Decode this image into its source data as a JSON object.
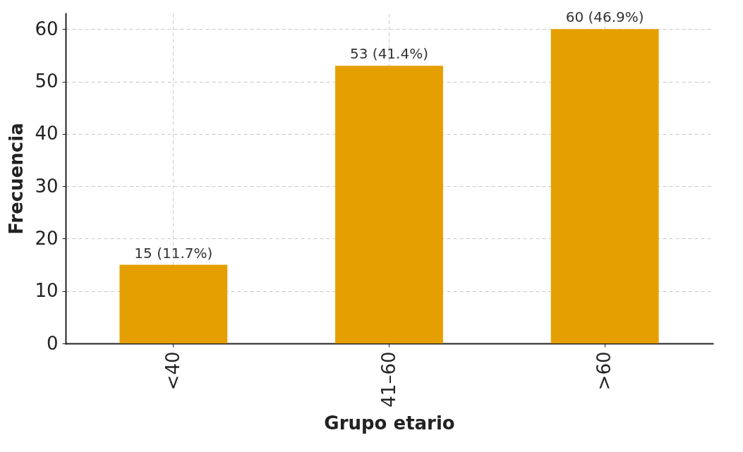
{
  "chart_data": {
    "type": "bar",
    "xlabel": "Grupo etario",
    "ylabel": "Frecuencia",
    "categories": [
      "<40",
      "41–60",
      ">60"
    ],
    "values": [
      15,
      53,
      60
    ],
    "value_labels": [
      "15 (11.7%)",
      "53 (41.4%)",
      "60 (46.9%)"
    ],
    "color": "#e69f00",
    "ylim": [
      0,
      63
    ],
    "yticks": [
      0,
      10,
      20,
      30,
      40,
      50,
      60
    ],
    "grid": true
  }
}
